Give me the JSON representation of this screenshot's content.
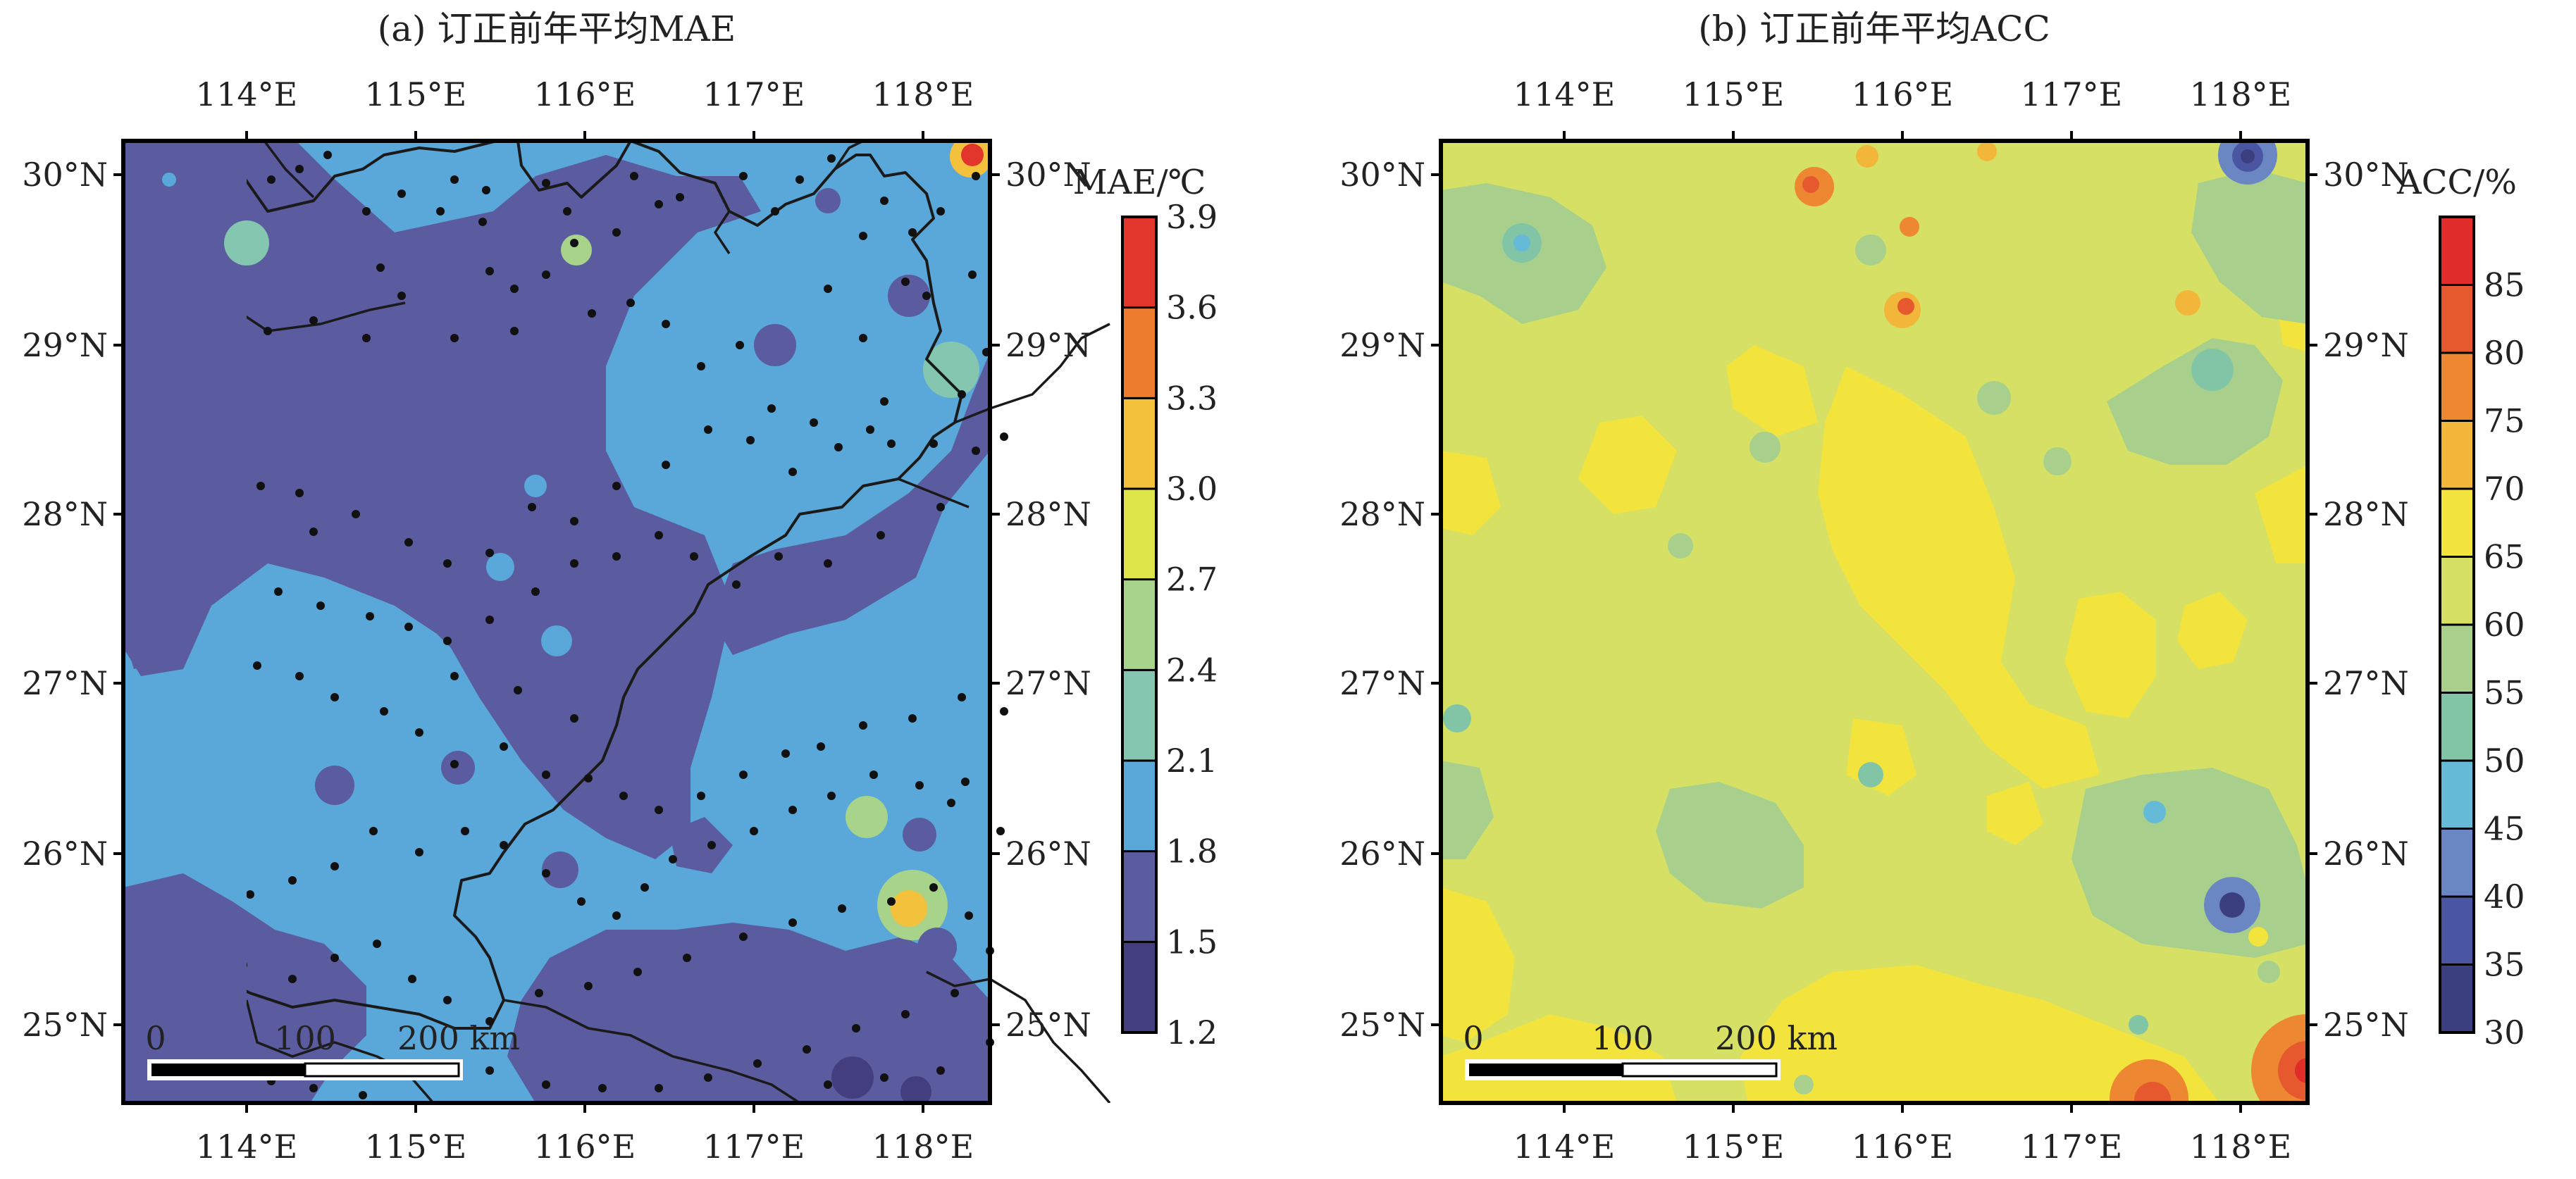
{
  "panels": [
    {
      "id": "a",
      "title": "(a) 订正前年平均MAE",
      "colorbar": {
        "title": "MAE/℃",
        "levels": [
          "1.2",
          "1.5",
          "1.8",
          "2.1",
          "2.4",
          "2.7",
          "3.0",
          "3.3",
          "3.6",
          "3.9"
        ],
        "colors": [
          "#433f7f",
          "#5b5ba0",
          "#5aa7d9",
          "#84c6b0",
          "#a7d38a",
          "#dde54b",
          "#f4c13c",
          "#ee7c2f",
          "#e2352b"
        ]
      }
    },
    {
      "id": "b",
      "title": "(b) 订正前年平均ACC",
      "colorbar": {
        "title": "ACC/%",
        "levels": [
          "30",
          "35",
          "40",
          "45",
          "50",
          "55",
          "60",
          "65",
          "70",
          "75",
          "80",
          "85"
        ],
        "colors": [
          "#3c3f7f",
          "#4a56a1",
          "#6a87c4",
          "#65bbd7",
          "#82c5a6",
          "#a8d08c",
          "#d5e064",
          "#f3e33d",
          "#f2b73a",
          "#ee8731",
          "#e6592e",
          "#e02d2a"
        ]
      }
    }
  ],
  "axes": {
    "lon_ticks": [
      "114°E",
      "115°E",
      "116°E",
      "117°E",
      "118°E"
    ],
    "lat_ticks": [
      "30°N",
      "29°N",
      "28°N",
      "27°N",
      "26°N",
      "25°N"
    ]
  },
  "scalebar": {
    "labels": [
      "0",
      "100",
      "200 km"
    ]
  },
  "chart_data": [
    {
      "type": "heatmap",
      "title": "(a) 订正前年平均MAE",
      "xlabel": "",
      "ylabel": "",
      "xlim": [
        113.4,
        118.55
      ],
      "ylim": [
        24.45,
        30.2
      ],
      "x_ticks": [
        "114°E",
        "115°E",
        "116°E",
        "117°E",
        "118°E"
      ],
      "y_ticks": [
        "30°N",
        "29°N",
        "28°N",
        "27°N",
        "26°N",
        "25°N"
      ],
      "colorbar_label": "MAE/℃",
      "colorbar_levels": [
        1.2,
        1.5,
        1.8,
        2.1,
        2.4,
        2.7,
        3.0,
        3.3,
        3.6,
        3.9
      ],
      "value_range": [
        1.2,
        3.9
      ]
    },
    {
      "type": "heatmap",
      "title": "(b) 订正前年平均ACC",
      "xlabel": "",
      "ylabel": "",
      "xlim": [
        113.4,
        118.55
      ],
      "ylim": [
        24.45,
        30.2
      ],
      "x_ticks": [
        "114°E",
        "115°E",
        "116°E",
        "117°E",
        "118°E"
      ],
      "y_ticks": [
        "30°N",
        "29°N",
        "28°N",
        "27°N",
        "26°N",
        "25°N"
      ],
      "colorbar_label": "ACC/%",
      "colorbar_levels": [
        30,
        35,
        40,
        45,
        50,
        55,
        60,
        65,
        70,
        75,
        80,
        85
      ],
      "value_range": [
        30,
        85
      ]
    }
  ]
}
